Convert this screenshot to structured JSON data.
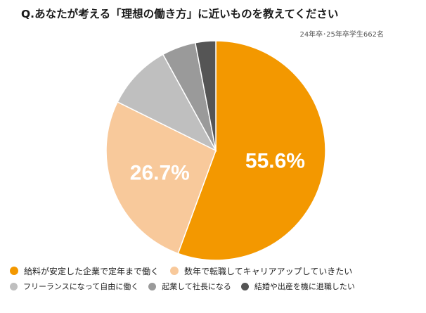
{
  "header": {
    "title": "Q.あなたが考える「理想の働き方」に近いものを教えてください",
    "sample_note": "24年卒･25年卒学生662名"
  },
  "chart_data": {
    "type": "pie",
    "title": "Q.あなたが考える「理想の働き方」に近いものを教えてください",
    "start_angle_deg": 0,
    "direction": "clockwise",
    "legend_position": "bottom",
    "slices": [
      {
        "label": "給料が安定した企業で定年まで働く",
        "value": 55.6,
        "color": "#f39800",
        "data_label": "55.6%"
      },
      {
        "label": "数年で転職してキャリアアップしていきたい",
        "value": 26.7,
        "color": "#f8c99b",
        "data_label": "26.7%"
      },
      {
        "label": "フリーランスになって自由に働く",
        "value": 9.7,
        "color": "#bfbfbf",
        "data_label": ""
      },
      {
        "label": "起業して社長になる",
        "value": 5.0,
        "color": "#9a9a9a",
        "data_label": ""
      },
      {
        "label": "結婚や出産を機に退職したい",
        "value": 3.0,
        "color": "#555555",
        "data_label": ""
      }
    ]
  }
}
